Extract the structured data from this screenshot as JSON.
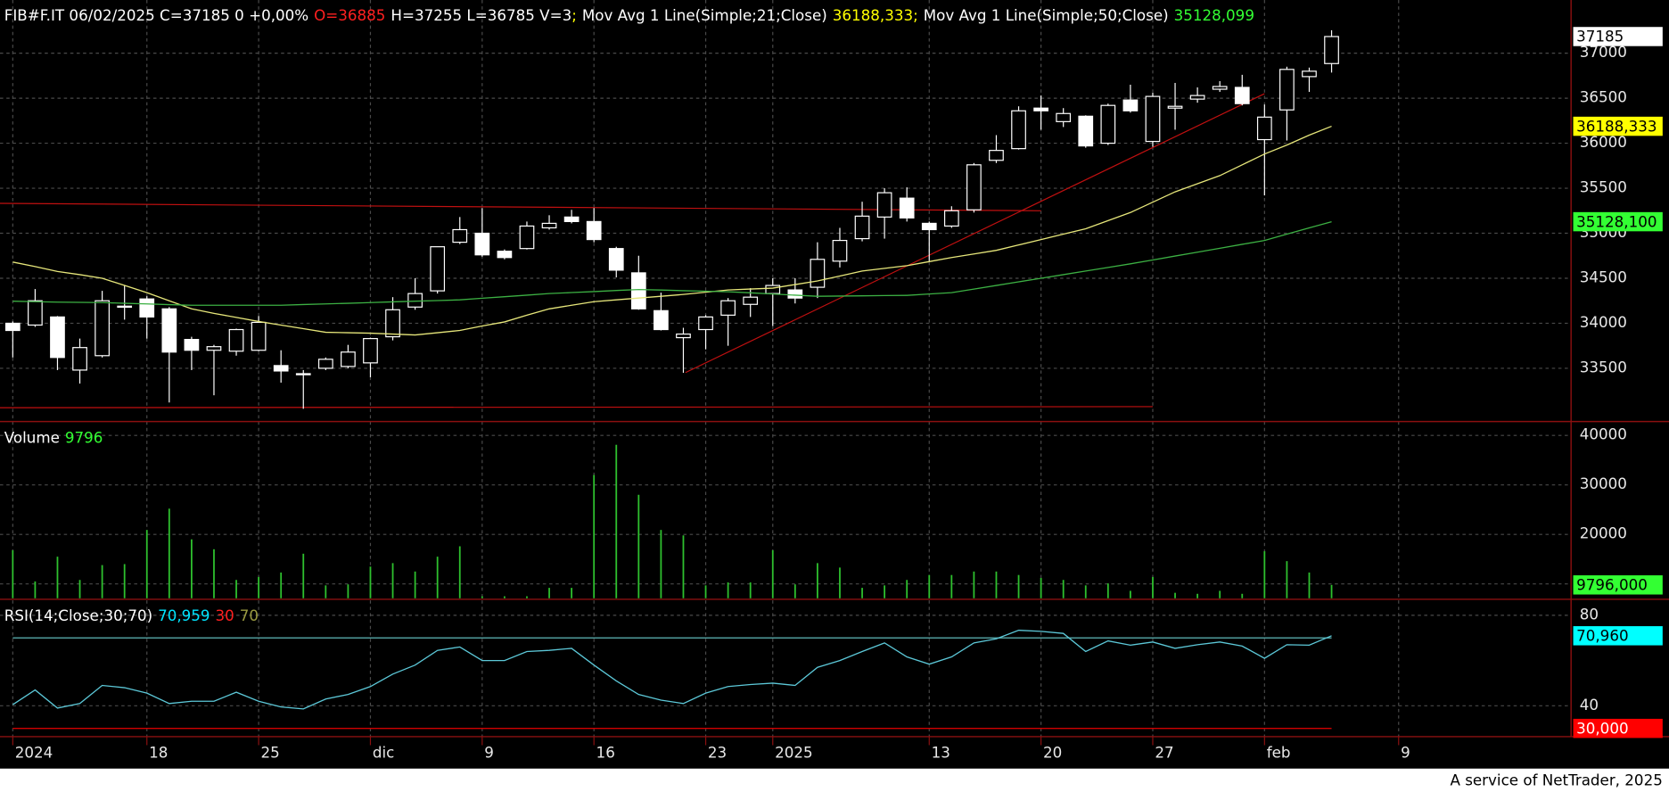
{
  "chart_data": [
    {
      "type": "candlestick",
      "header": [
        {
          "text": "FIB#F.IT 06/02/2025 C=37185 0 +0,00%",
          "color": "#ffffff"
        },
        {
          "text": "O=36885",
          "color": "#ff2020"
        },
        {
          "text": "H=37255 L=36785 V=3",
          "color": "#ffffff"
        },
        {
          "text": ";",
          "color": "#ffff00"
        },
        {
          "text": "Mov Avg 1 Line(Simple;21;Close)",
          "color": "#ffffff"
        },
        {
          "text": "36188,333",
          "color": "#ffff00"
        },
        {
          "text": ";",
          "color": "#ffff00"
        },
        {
          "text": "Mov Avg 1 Line(Simple;50;Close)",
          "color": "#ffffff"
        },
        {
          "text": "35128,099",
          "color": "#33ff33"
        }
      ],
      "open": [
        34000,
        33980,
        34070,
        33480,
        33640,
        34180,
        34270,
        34160,
        33820,
        33700,
        33690,
        33700,
        33530,
        33440,
        33500,
        33520,
        33560,
        33850,
        34180,
        34360,
        34900,
        35000,
        34800,
        34830,
        35060,
        35180,
        35130,
        34830,
        34560,
        34140,
        33840,
        33930,
        34090,
        34210,
        34330,
        34370,
        34400,
        34690,
        34940,
        35180,
        35390,
        35110,
        35080,
        35260,
        35810,
        35940,
        36390,
        36240,
        36300,
        36000,
        36480,
        36020,
        36390,
        36490,
        36600,
        36620,
        36040,
        36370,
        36740,
        36885,
        null,
        null,
        null
      ],
      "high": [
        34020,
        34380,
        34080,
        33830,
        34360,
        34420,
        34300,
        34180,
        33850,
        33760,
        33940,
        34080,
        33700,
        33480,
        33620,
        33760,
        33840,
        34290,
        34500,
        34850,
        35180,
        35280,
        34820,
        35130,
        35200,
        35260,
        35280,
        34850,
        34750,
        34340,
        33950,
        34090,
        34280,
        34390,
        34500,
        34500,
        34900,
        35060,
        35350,
        35500,
        35510,
        35130,
        35300,
        35780,
        36090,
        36410,
        36530,
        36390,
        36310,
        36440,
        36650,
        36560,
        36670,
        36620,
        36690,
        36760,
        36430,
        36850,
        36840,
        37255,
        null,
        null,
        null
      ],
      "low": [
        33620,
        33960,
        33480,
        33330,
        33620,
        34040,
        33830,
        33120,
        33480,
        33200,
        33640,
        33690,
        33340,
        33050,
        33480,
        33500,
        33400,
        33810,
        34150,
        34330,
        34880,
        34740,
        34710,
        34820,
        35040,
        35110,
        34900,
        34510,
        34150,
        33920,
        33450,
        33710,
        33750,
        34070,
        33970,
        34220,
        34280,
        34620,
        34910,
        34940,
        35130,
        34690,
        35060,
        35230,
        35780,
        35930,
        36150,
        36180,
        35950,
        35980,
        36340,
        35960,
        36150,
        36450,
        36570,
        36420,
        35420,
        36030,
        36570,
        36785,
        null,
        null,
        null
      ],
      "close": [
        33920,
        34250,
        33620,
        33730,
        34250,
        34190,
        34070,
        33680,
        33700,
        33740,
        33930,
        34010,
        33470,
        33430,
        33600,
        33680,
        33830,
        34150,
        34330,
        34850,
        35040,
        34760,
        34730,
        35080,
        35110,
        35130,
        34930,
        34590,
        34160,
        33930,
        33880,
        34070,
        34250,
        34290,
        34420,
        34280,
        34710,
        34920,
        35190,
        35450,
        35170,
        35040,
        35250,
        35760,
        35920,
        36360,
        36360,
        36330,
        35970,
        36420,
        36360,
        36520,
        36410,
        36530,
        36630,
        36440,
        36290,
        36820,
        36800,
        37185,
        null,
        null,
        null
      ],
      "up_color": "#000000",
      "down_color": "#ffffff",
      "wick_color": "#ffffff",
      "marker": {
        "value": 37185,
        "label": "37185",
        "color": "#ffffff",
        "text_color": "#000000"
      },
      "series": [
        {
          "color": "#e6e67a",
          "values": [
            34680,
            34630,
            34575,
            34540,
            34500,
            34420,
            34340,
            34250,
            34160,
            34110,
            34065,
            34020,
            33980,
            33940,
            33900,
            33895,
            33890,
            33880,
            33870,
            33895,
            33920,
            33970,
            34015,
            34090,
            34160,
            34200,
            34240,
            34260,
            34280,
            34300,
            34320,
            34345,
            34370,
            34380,
            34390,
            34430,
            34470,
            34525,
            34580,
            34610,
            34640,
            34685,
            34730,
            34770,
            34810,
            34870,
            34930,
            34990,
            35050,
            35140,
            35230,
            35345,
            35460,
            35550,
            35640,
            35760,
            35880,
            35980,
            36090,
            36188.333,
            null,
            null,
            null
          ],
          "marker": {
            "value": 36188.333,
            "label": "36188,333",
            "color": "#ffff00",
            "text_color": "#000000"
          }
        },
        {
          "color": "#3cb043",
          "values": [
            34245,
            34240,
            34235,
            34232,
            34230,
            34222,
            34215,
            34207,
            34200,
            34200,
            34200,
            34200,
            34200,
            34208,
            34215,
            34222,
            34230,
            34238,
            34245,
            34252,
            34260,
            34278,
            34295,
            34312,
            34330,
            34341,
            34352,
            34364,
            34375,
            34369,
            34362,
            34356,
            34350,
            34338,
            34325,
            34312,
            34300,
            34302,
            34305,
            34308,
            34310,
            34325,
            34340,
            34380,
            34420,
            34460,
            34500,
            34540,
            34580,
            34620,
            34660,
            34703,
            34747,
            34790,
            34833,
            34877,
            34920,
            34990,
            35060,
            35128.099,
            null,
            null,
            null
          ],
          "marker": {
            "value": 35128.1,
            "label": "35128,100",
            "color": "#33ff33",
            "text_color": "#000000"
          }
        }
      ],
      "ylim": [
        32920,
        37591
      ],
      "yticks": [
        33500,
        34000,
        34500,
        35000,
        35500,
        36000,
        36500,
        37000
      ],
      "grid": true
    },
    {
      "type": "bar",
      "header": [
        {
          "text": "Volume",
          "color": "#ffffff"
        },
        {
          "text": "9796",
          "color": "#33ff33"
        }
      ],
      "values": [
        16800,
        10500,
        15500,
        10800,
        13800,
        14000,
        20900,
        25200,
        19000,
        17000,
        10800,
        11400,
        12300,
        16100,
        9700,
        9900,
        13500,
        14200,
        12500,
        15500,
        17600,
        7500,
        7500,
        7500,
        9200,
        9200,
        32000,
        38100,
        28000,
        20900,
        19800,
        9700,
        10300,
        10300,
        16800,
        9900,
        14200,
        13300,
        9200,
        9700,
        10800,
        11800,
        11800,
        12500,
        12500,
        11800,
        11200,
        10800,
        9700,
        10100,
        8600,
        11400,
        8200,
        8000,
        8600,
        8000,
        16600,
        14600,
        12300,
        9796,
        null,
        null,
        null
      ],
      "color": "#2ec02e",
      "marker": {
        "value": 9796,
        "label": "9796,000",
        "color": "#33ff33",
        "text_color": "#000000"
      },
      "ylim": [
        7100,
        42580
      ],
      "yticks": [
        10000,
        20000,
        30000,
        40000
      ],
      "grid": true
    },
    {
      "type": "line",
      "header": [
        {
          "text": "RSI(14;Close;30;70)",
          "color": "#ffffff"
        },
        {
          "text": "70,959",
          "color": "#00e5ff"
        },
        {
          "text": "30",
          "color": "#ff2020"
        },
        {
          "text": "70",
          "color": "#9a9a40"
        }
      ],
      "categories": [
        "2024",
        null,
        null,
        null,
        null,
        null,
        "18",
        null,
        null,
        null,
        null,
        "25",
        null,
        null,
        null,
        null,
        "dic",
        null,
        null,
        null,
        null,
        "9",
        null,
        null,
        null,
        null,
        "16",
        null,
        null,
        null,
        null,
        "23",
        null,
        null,
        "2025",
        null,
        null,
        null,
        null,
        null,
        null,
        "13",
        null,
        null,
        null,
        null,
        "20",
        null,
        null,
        null,
        null,
        "27",
        null,
        null,
        null,
        null,
        "feb",
        null,
        null,
        null,
        null,
        null,
        "9"
      ],
      "values": [
        40.5,
        47,
        39,
        41,
        49,
        48,
        45.6,
        41,
        42,
        42,
        46,
        42,
        39.5,
        38.6,
        43,
        45,
        48.5,
        54,
        58,
        64.5,
        66,
        60,
        60,
        64,
        64.5,
        65.4,
        58,
        51,
        45,
        42.5,
        41,
        45.6,
        48.5,
        49.4,
        50,
        49,
        57,
        60,
        64,
        67.8,
        61.6,
        58.4,
        61.6,
        67.8,
        69.6,
        73.4,
        72.9,
        72,
        64,
        68.7,
        66.8,
        68.2,
        65.4,
        67,
        68.2,
        66.4,
        61,
        67,
        66.8,
        70.959,
        null,
        null,
        null
      ],
      "color": "#5cc8d8",
      "marker": {
        "value": 70.96,
        "label": "70,960",
        "color": "#00ffff",
        "text_color": "#000000"
      },
      "levels": [
        {
          "value": 70,
          "color": "#4f9a9a"
        },
        {
          "value": 30,
          "color": "#d00000",
          "label": "30,000",
          "box_color": "#ff0000",
          "text_color": "#ffffff"
        }
      ],
      "ylim": [
        26.35,
        86.6
      ],
      "yticks": [
        40,
        80
      ],
      "grid": true
    }
  ],
  "footer": "A service of NetTrader, 2025"
}
